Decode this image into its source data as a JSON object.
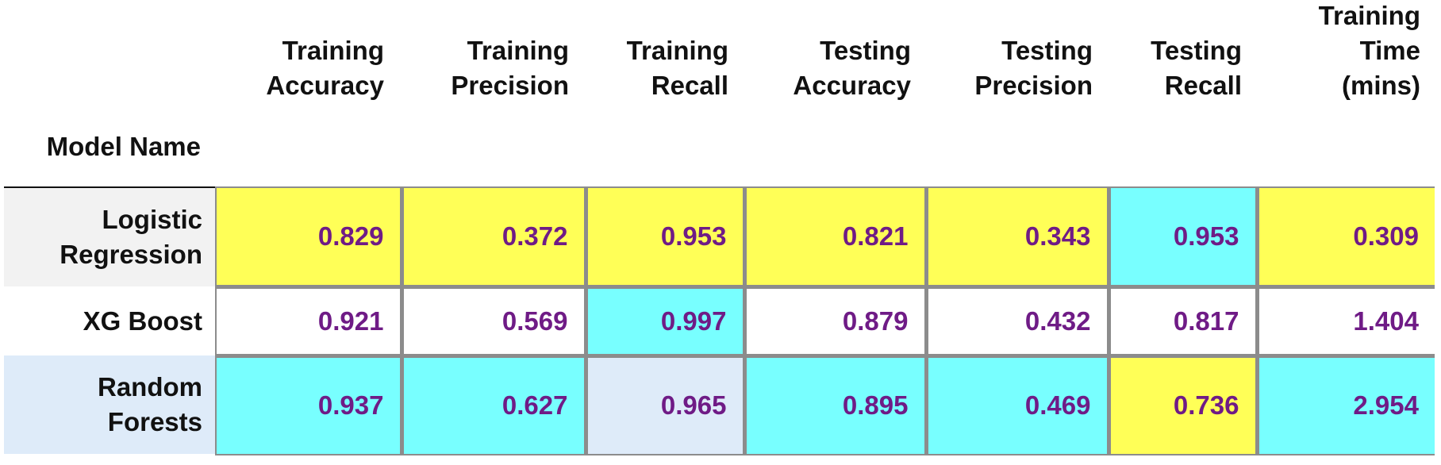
{
  "table": {
    "index_name": "Model Name",
    "columns": [
      {
        "lines": [
          "Training",
          "Accuracy"
        ]
      },
      {
        "lines": [
          "Training",
          "Precision"
        ]
      },
      {
        "lines": [
          "Training",
          "Recall"
        ]
      },
      {
        "lines": [
          "Testing",
          "Accuracy"
        ]
      },
      {
        "lines": [
          "Testing",
          "Precision"
        ]
      },
      {
        "lines": [
          "Testing",
          "Recall"
        ]
      },
      {
        "lines": [
          "Training",
          "Time",
          "(mins)"
        ]
      }
    ],
    "rows": [
      {
        "label_lines": [
          "Logistic",
          "Regression"
        ],
        "label_bg": "#f2f2f2",
        "values": [
          "0.829",
          "0.372",
          "0.953",
          "0.821",
          "0.343",
          "0.953",
          "0.309"
        ],
        "colors": [
          "#ffff57",
          "#ffff57",
          "#ffff57",
          "#ffff57",
          "#ffff57",
          "#78ffff",
          "#ffff57"
        ]
      },
      {
        "label_lines": [
          "XG Boost"
        ],
        "label_bg": "#ffffff",
        "values": [
          "0.921",
          "0.569",
          "0.997",
          "0.879",
          "0.432",
          "0.817",
          "1.404"
        ],
        "colors": [
          "#ffffff",
          "#ffffff",
          "#78ffff",
          "#ffffff",
          "#ffffff",
          "#ffffff",
          "#ffffff"
        ]
      },
      {
        "label_lines": [
          "Random",
          "Forests"
        ],
        "label_bg": "#deebf9",
        "values": [
          "0.937",
          "0.627",
          "0.965",
          "0.895",
          "0.469",
          "0.736",
          "2.954"
        ],
        "colors": [
          "#78ffff",
          "#78ffff",
          "#deebf9",
          "#78ffff",
          "#78ffff",
          "#ffff57",
          "#78ffff"
        ]
      }
    ],
    "value_color": "#6f1b86",
    "border_color": "#8c8c8c"
  }
}
